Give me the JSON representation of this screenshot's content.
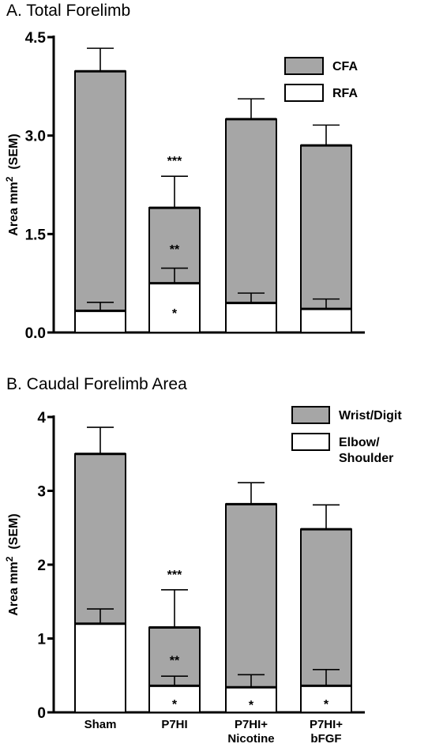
{
  "chart_data": [
    {
      "type": "bar",
      "stacked": true,
      "title": "A. Total Forelimb",
      "ylabel_main": "Area mm",
      "ylabel_sup": "2",
      "ylabel_tail": "(SEM)",
      "ylim": [
        0,
        4.5
      ],
      "yticks": [
        "0.0",
        "1.5",
        "3.0",
        "4.5"
      ],
      "ytick_values": [
        0,
        1.5,
        3.0,
        4.5
      ],
      "categories": [
        "Sham",
        "P7HI",
        "P7HI+ Nicotine",
        "P7HI+ bFGF"
      ],
      "show_category_labels": false,
      "series": [
        {
          "name": "RFA",
          "color": "#ffffff",
          "values": [
            0.33,
            0.75,
            0.45,
            0.36
          ],
          "errors": [
            0.13,
            0.23,
            0.15,
            0.15
          ]
        },
        {
          "name": "CFA",
          "color": "#a6a6a6",
          "totals": [
            3.98,
            1.9,
            3.25,
            2.85
          ],
          "errors": [
            0.35,
            0.48,
            0.31,
            0.31
          ]
        }
      ],
      "legend_order": [
        "CFA",
        "RFA"
      ],
      "legend_position": "top-right",
      "annotations": [
        {
          "category": 1,
          "series": "total",
          "text": "***"
        },
        {
          "category": 1,
          "series": "upper",
          "text": "**"
        },
        {
          "category": 1,
          "series": "lower",
          "text": "*"
        }
      ]
    },
    {
      "type": "bar",
      "stacked": true,
      "title": "B. Caudal Forelimb Area",
      "ylabel_main": "Area mm",
      "ylabel_sup": "2",
      "ylabel_tail": "(SEM)",
      "ylim": [
        0,
        4
      ],
      "yticks": [
        "0",
        "1",
        "2",
        "3",
        "4"
      ],
      "ytick_values": [
        0,
        1,
        2,
        3,
        4
      ],
      "categories": [
        "Sham",
        "P7HI",
        "P7HI+\nNicotine",
        "P7HI+\nbFGF"
      ],
      "show_category_labels": true,
      "series": [
        {
          "name": "Elbow/\nShoulder",
          "color": "#ffffff",
          "values": [
            1.2,
            0.36,
            0.34,
            0.36
          ],
          "errors": [
            0.2,
            0.13,
            0.17,
            0.22
          ]
        },
        {
          "name": "Wrist/Digit",
          "color": "#a6a6a6",
          "totals": [
            3.5,
            1.15,
            2.82,
            2.48
          ],
          "errors": [
            0.36,
            0.51,
            0.29,
            0.33
          ]
        }
      ],
      "legend_order": [
        "Wrist/Digit",
        "Elbow/\nShoulder"
      ],
      "legend_position": "top-right",
      "annotations": [
        {
          "category": 1,
          "series": "total",
          "text": "***"
        },
        {
          "category": 1,
          "series": "upper",
          "text": "**"
        },
        {
          "category": 1,
          "series": "lower",
          "text": "*"
        },
        {
          "category": 2,
          "series": "lower",
          "text": "*"
        },
        {
          "category": 3,
          "series": "lower",
          "text": "*"
        }
      ]
    }
  ]
}
